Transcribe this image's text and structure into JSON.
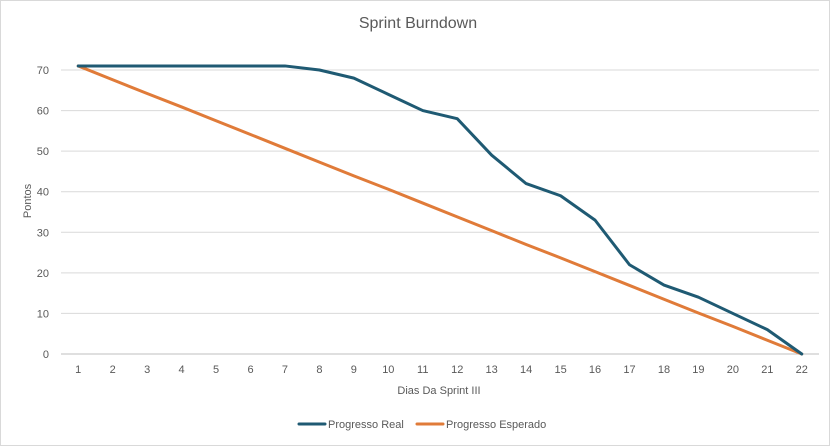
{
  "chart_data": {
    "type": "line",
    "title": "Sprint Burndown",
    "xlabel": "Dias Da Sprint III",
    "ylabel": "Pontos",
    "categories": [
      1,
      2,
      3,
      4,
      5,
      6,
      7,
      8,
      9,
      10,
      11,
      12,
      13,
      14,
      15,
      16,
      17,
      18,
      19,
      20,
      21,
      22
    ],
    "ylim": [
      0,
      70
    ],
    "yticks": [
      0,
      10,
      20,
      30,
      40,
      50,
      60,
      70
    ],
    "grid": true,
    "legend_position": "bottom",
    "series": [
      {
        "name": "Progresso Real",
        "color": "#1f5a73",
        "values": [
          71,
          71,
          71,
          71,
          71,
          71,
          71,
          70,
          68,
          64,
          60,
          58,
          49,
          42,
          39,
          33,
          22,
          17,
          14,
          10,
          6,
          0
        ]
      },
      {
        "name": "Progresso Esperado",
        "color": "#e07b39",
        "values": [
          71,
          67.6,
          64.2,
          60.9,
          57.5,
          54.1,
          50.7,
          47.3,
          43.9,
          40.6,
          37.2,
          33.8,
          30.4,
          27.0,
          23.7,
          20.3,
          16.9,
          13.5,
          10.1,
          6.8,
          3.4,
          0
        ]
      }
    ]
  }
}
